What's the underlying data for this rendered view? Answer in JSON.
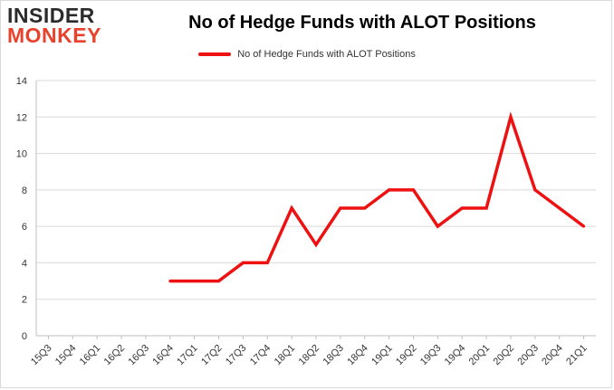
{
  "logo": {
    "line1": "INSIDER",
    "line2": "MONKEY"
  },
  "colors": {
    "series": "#ee1111",
    "grid": "#d9d9d9",
    "logo_red": "#e8412c"
  },
  "chart_data": {
    "type": "line",
    "title": "No of Hedge Funds with ALOT Positions",
    "xlabel": "",
    "ylabel": "",
    "legend_placement": "top-center",
    "grid": true,
    "ylim": [
      0,
      14
    ],
    "yticks": [
      0,
      2,
      4,
      6,
      8,
      10,
      12,
      14
    ],
    "categories": [
      "15Q3",
      "15Q4",
      "16Q1",
      "16Q2",
      "16Q3",
      "16Q4",
      "17Q1",
      "17Q2",
      "17Q3",
      "17Q4",
      "18Q1",
      "18Q2",
      "18Q3",
      "18Q4",
      "19Q1",
      "19Q2",
      "19Q3",
      "19Q4",
      "20Q1",
      "20Q2",
      "20Q3",
      "20Q4",
      "21Q1"
    ],
    "series": [
      {
        "name": "No of Hedge Funds with ALOT Positions",
        "values": [
          null,
          null,
          null,
          null,
          null,
          3,
          3,
          3,
          4,
          4,
          7,
          5,
          7,
          7,
          8,
          8,
          6,
          7,
          7,
          12,
          8,
          7,
          6
        ]
      }
    ]
  }
}
